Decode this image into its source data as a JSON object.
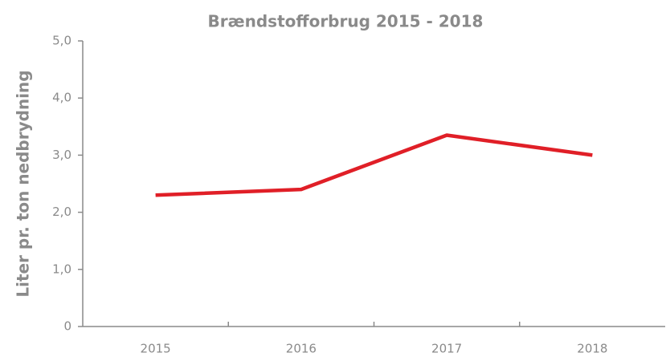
{
  "chart_data": {
    "type": "line",
    "title": "Brændstofforbrug 2015 - 2018",
    "y_label": "Liter pr. ton nedbrydning",
    "categories": [
      "2015",
      "2016",
      "2017",
      "2018"
    ],
    "series": [
      {
        "name": "Brændstofforbrug",
        "color": "#e01f27",
        "values": [
          2.3,
          2.4,
          3.35,
          3.0
        ]
      }
    ],
    "ylim": [
      0,
      5
    ],
    "yticks": [
      0,
      {
        "value": 1,
        "label": "1,0"
      },
      {
        "value": 2,
        "label": "2,0"
      },
      {
        "value": 3,
        "label": "3,0"
      },
      {
        "value": 4,
        "label": "4,0"
      },
      {
        "value": 5,
        "label": "5,0"
      }
    ],
    "grid": false
  }
}
